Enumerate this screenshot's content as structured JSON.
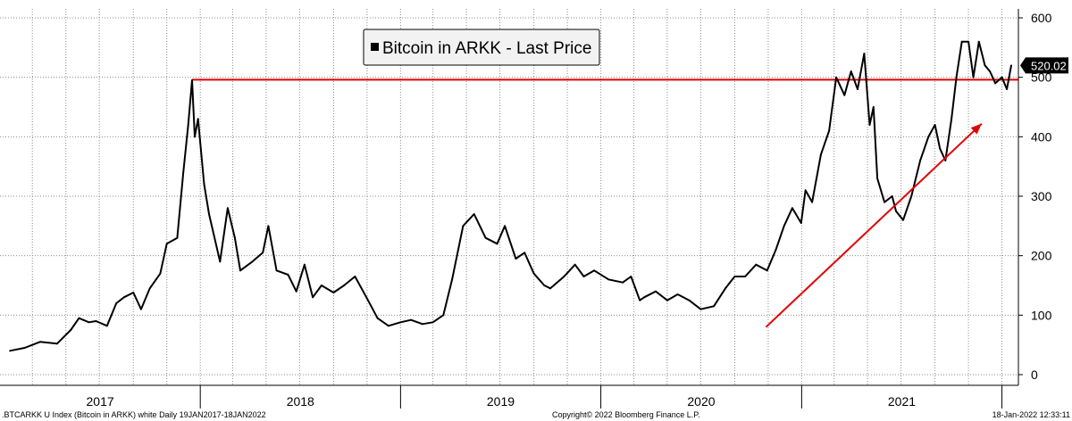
{
  "chart_data": {
    "type": "line",
    "legend": {
      "label": "Bitcoin in ARKK - Last Price",
      "placement": "top-center"
    },
    "y_axis": {
      "side": "right",
      "ylim": [
        0,
        600
      ],
      "ticks": [
        0,
        100,
        200,
        300,
        400,
        500,
        600
      ]
    },
    "x_axis": {
      "year_labels": [
        "2017",
        "2018",
        "2019",
        "2020",
        "2021"
      ]
    },
    "grid": true,
    "last_price_label": "520.02",
    "horizontal_line": {
      "value": 496,
      "color": "#e00000"
    },
    "trend_arrow": {
      "color": "#e00000",
      "from": [
        "2020-10-28",
        80
      ],
      "to": [
        "2021-11-25",
        422
      ]
    },
    "series": [
      {
        "color": "#000000",
        "x": [
          "2017-01-19",
          "2017-02-15",
          "2017-03-15",
          "2017-04-15",
          "2017-05-10",
          "2017-05-25",
          "2017-06-12",
          "2017-06-25",
          "2017-07-15",
          "2017-08-01",
          "2017-08-15",
          "2017-09-01",
          "2017-09-15",
          "2017-10-01",
          "2017-10-20",
          "2017-11-01",
          "2017-11-20",
          "2017-12-01",
          "2017-12-10",
          "2017-12-17",
          "2017-12-22",
          "2017-12-28",
          "2018-01-08",
          "2018-01-17",
          "2018-02-06",
          "2018-02-20",
          "2018-03-05",
          "2018-03-15",
          "2018-04-06",
          "2018-04-25",
          "2018-05-05",
          "2018-05-20",
          "2018-06-10",
          "2018-06-25",
          "2018-07-10",
          "2018-07-25",
          "2018-08-10",
          "2018-09-01",
          "2018-09-20",
          "2018-10-10",
          "2018-11-01",
          "2018-11-20",
          "2018-12-10",
          "2019-01-01",
          "2019-01-20",
          "2019-02-10",
          "2019-03-01",
          "2019-03-20",
          "2019-04-05",
          "2019-04-25",
          "2019-05-15",
          "2019-06-05",
          "2019-06-26",
          "2019-07-10",
          "2019-07-30",
          "2019-08-15",
          "2019-09-01",
          "2019-09-20",
          "2019-10-01",
          "2019-10-26",
          "2019-11-15",
          "2019-12-01",
          "2019-12-20",
          "2020-01-15",
          "2020-02-10",
          "2020-02-25",
          "2020-03-12",
          "2020-03-20",
          "2020-04-10",
          "2020-05-01",
          "2020-05-20",
          "2020-06-10",
          "2020-07-01",
          "2020-07-25",
          "2020-08-15",
          "2020-09-01",
          "2020-09-20",
          "2020-10-10",
          "2020-10-30",
          "2020-11-15",
          "2020-11-30",
          "2020-12-15",
          "2020-12-31",
          "2021-01-08",
          "2021-01-20",
          "2021-02-05",
          "2021-02-20",
          "2021-03-05",
          "2021-03-20",
          "2021-04-01",
          "2021-04-13",
          "2021-04-25",
          "2021-05-05",
          "2021-05-12",
          "2021-05-19",
          "2021-06-01",
          "2021-06-15",
          "2021-06-22",
          "2021-07-05",
          "2021-07-20",
          "2021-08-05",
          "2021-08-20",
          "2021-09-01",
          "2021-09-10",
          "2021-09-20",
          "2021-10-01",
          "2021-10-10",
          "2021-10-20",
          "2021-11-01",
          "2021-11-10",
          "2021-11-20",
          "2021-12-01",
          "2021-12-10",
          "2021-12-20",
          "2022-01-01",
          "2022-01-10",
          "2022-01-18"
        ],
        "y": [
          40,
          45,
          55,
          52,
          75,
          95,
          88,
          90,
          82,
          120,
          130,
          138,
          110,
          145,
          170,
          220,
          230,
          340,
          420,
          495,
          400,
          430,
          320,
          270,
          190,
          280,
          230,
          175,
          190,
          205,
          250,
          175,
          168,
          140,
          185,
          130,
          150,
          138,
          150,
          165,
          128,
          95,
          82,
          88,
          92,
          85,
          88,
          100,
          160,
          250,
          270,
          230,
          220,
          250,
          195,
          205,
          170,
          150,
          145,
          165,
          185,
          165,
          175,
          160,
          155,
          165,
          125,
          130,
          140,
          125,
          135,
          125,
          110,
          115,
          145,
          165,
          165,
          185,
          175,
          210,
          250,
          280,
          255,
          310,
          290,
          370,
          410,
          500,
          470,
          510,
          480,
          540,
          420,
          450,
          330,
          290,
          300,
          275,
          260,
          300,
          360,
          400,
          420,
          380,
          360,
          430,
          500,
          560,
          560,
          500,
          560,
          520,
          510,
          490,
          500,
          480,
          520
        ]
      }
    ]
  },
  "footer": {
    "left": ".BTCARKK U Index (Bitcoin in ARKK) white  Daily 19JAN2017-18JAN2022",
    "center": "Copyright© 2022 Bloomberg Finance L.P.",
    "right": "18-Jan-2022 12:33:11"
  }
}
